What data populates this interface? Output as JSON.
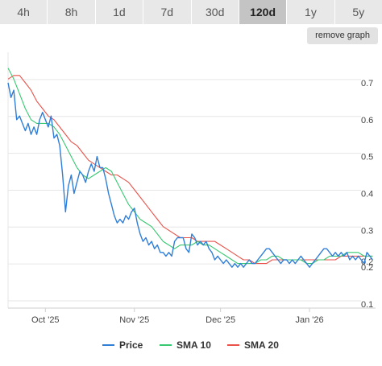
{
  "tabs": [
    {
      "label": "4h",
      "active": false
    },
    {
      "label": "8h",
      "active": false
    },
    {
      "label": "1d",
      "active": false
    },
    {
      "label": "7d",
      "active": false
    },
    {
      "label": "30d",
      "active": false
    },
    {
      "label": "120d",
      "active": true
    },
    {
      "label": "1y",
      "active": false
    },
    {
      "label": "5y",
      "active": false
    }
  ],
  "remove_graph_label": "remove graph",
  "chart_data": {
    "type": "line",
    "title": "",
    "xlabel": "",
    "ylabel": "",
    "ylim": [
      0.1,
      0.75
    ],
    "y_ticks": [
      0.7,
      0.6,
      0.5,
      0.4,
      0.3,
      0.2,
      0.1
    ],
    "x_range": [
      "2025-09-18",
      "2026-01-24"
    ],
    "x_ticks": [
      {
        "label": "Oct '25",
        "date": "2025-10-01"
      },
      {
        "label": "Nov '25",
        "date": "2025-11-01"
      },
      {
        "label": "Dec '25",
        "date": "2025-12-01"
      },
      {
        "label": "Jan '26",
        "date": "2026-01-01"
      }
    ],
    "grid": "horizontal",
    "legend": "bottom",
    "current_value_label": "0.2",
    "series": [
      {
        "name": "Price",
        "color": "#2f7ed8",
        "points": [
          [
            "2025-09-18",
            0.7
          ],
          [
            "2025-09-19",
            0.66
          ],
          [
            "2025-09-20",
            0.68
          ],
          [
            "2025-09-21",
            0.6
          ],
          [
            "2025-09-22",
            0.61
          ],
          [
            "2025-09-23",
            0.59
          ],
          [
            "2025-09-24",
            0.57
          ],
          [
            "2025-09-25",
            0.59
          ],
          [
            "2025-09-26",
            0.56
          ],
          [
            "2025-09-27",
            0.58
          ],
          [
            "2025-09-28",
            0.56
          ],
          [
            "2025-09-29",
            0.6
          ],
          [
            "2025-09-30",
            0.62
          ],
          [
            "2025-10-01",
            0.6
          ],
          [
            "2025-10-02",
            0.58
          ],
          [
            "2025-10-03",
            0.61
          ],
          [
            "2025-10-04",
            0.55
          ],
          [
            "2025-10-05",
            0.56
          ],
          [
            "2025-10-06",
            0.53
          ],
          [
            "2025-10-07",
            0.45
          ],
          [
            "2025-10-08",
            0.35
          ],
          [
            "2025-10-09",
            0.42
          ],
          [
            "2025-10-10",
            0.45
          ],
          [
            "2025-10-11",
            0.4
          ],
          [
            "2025-10-12",
            0.43
          ],
          [
            "2025-10-13",
            0.46
          ],
          [
            "2025-10-14",
            0.45
          ],
          [
            "2025-10-15",
            0.43
          ],
          [
            "2025-10-16",
            0.46
          ],
          [
            "2025-10-17",
            0.48
          ],
          [
            "2025-10-18",
            0.46
          ],
          [
            "2025-10-19",
            0.5
          ],
          [
            "2025-10-20",
            0.47
          ],
          [
            "2025-10-21",
            0.47
          ],
          [
            "2025-10-22",
            0.44
          ],
          [
            "2025-10-23",
            0.4
          ],
          [
            "2025-10-24",
            0.37
          ],
          [
            "2025-10-25",
            0.34
          ],
          [
            "2025-10-26",
            0.32
          ],
          [
            "2025-10-27",
            0.33
          ],
          [
            "2025-10-28",
            0.32
          ],
          [
            "2025-10-29",
            0.34
          ],
          [
            "2025-10-30",
            0.33
          ],
          [
            "2025-10-31",
            0.35
          ],
          [
            "2025-11-01",
            0.36
          ],
          [
            "2025-11-02",
            0.32
          ],
          [
            "2025-11-03",
            0.29
          ],
          [
            "2025-11-04",
            0.27
          ],
          [
            "2025-11-05",
            0.28
          ],
          [
            "2025-11-06",
            0.26
          ],
          [
            "2025-11-07",
            0.27
          ],
          [
            "2025-11-08",
            0.25
          ],
          [
            "2025-11-09",
            0.26
          ],
          [
            "2025-11-10",
            0.24
          ],
          [
            "2025-11-11",
            0.24
          ],
          [
            "2025-11-12",
            0.23
          ],
          [
            "2025-11-13",
            0.24
          ],
          [
            "2025-11-14",
            0.23
          ],
          [
            "2025-11-15",
            0.27
          ],
          [
            "2025-11-16",
            0.28
          ],
          [
            "2025-11-17",
            0.28
          ],
          [
            "2025-11-18",
            0.28
          ],
          [
            "2025-11-19",
            0.25
          ],
          [
            "2025-11-20",
            0.24
          ],
          [
            "2025-11-21",
            0.29
          ],
          [
            "2025-11-22",
            0.28
          ],
          [
            "2025-11-23",
            0.26
          ],
          [
            "2025-11-24",
            0.27
          ],
          [
            "2025-11-25",
            0.26
          ],
          [
            "2025-11-26",
            0.27
          ],
          [
            "2025-11-27",
            0.25
          ],
          [
            "2025-11-28",
            0.24
          ],
          [
            "2025-11-29",
            0.22
          ],
          [
            "2025-11-30",
            0.23
          ],
          [
            "2025-12-01",
            0.22
          ],
          [
            "2025-12-02",
            0.21
          ],
          [
            "2025-12-03",
            0.22
          ],
          [
            "2025-12-04",
            0.21
          ],
          [
            "2025-12-05",
            0.2
          ],
          [
            "2025-12-06",
            0.21
          ],
          [
            "2025-12-07",
            0.2
          ],
          [
            "2025-12-08",
            0.21
          ],
          [
            "2025-12-09",
            0.2
          ],
          [
            "2025-12-10",
            0.21
          ],
          [
            "2025-12-11",
            0.22
          ],
          [
            "2025-12-12",
            0.21
          ],
          [
            "2025-12-13",
            0.21
          ],
          [
            "2025-12-14",
            0.22
          ],
          [
            "2025-12-15",
            0.23
          ],
          [
            "2025-12-16",
            0.24
          ],
          [
            "2025-12-17",
            0.25
          ],
          [
            "2025-12-18",
            0.25
          ],
          [
            "2025-12-19",
            0.24
          ],
          [
            "2025-12-20",
            0.23
          ],
          [
            "2025-12-21",
            0.22
          ],
          [
            "2025-12-22",
            0.21
          ],
          [
            "2025-12-23",
            0.22
          ],
          [
            "2025-12-24",
            0.22
          ],
          [
            "2025-12-25",
            0.21
          ],
          [
            "2025-12-26",
            0.22
          ],
          [
            "2025-12-27",
            0.21
          ],
          [
            "2025-12-28",
            0.22
          ],
          [
            "2025-12-29",
            0.23
          ],
          [
            "2025-12-30",
            0.22
          ],
          [
            "2025-12-31",
            0.21
          ],
          [
            "2026-01-01",
            0.2
          ],
          [
            "2026-01-02",
            0.21
          ],
          [
            "2026-01-03",
            0.22
          ],
          [
            "2026-01-04",
            0.23
          ],
          [
            "2026-01-05",
            0.24
          ],
          [
            "2026-01-06",
            0.25
          ],
          [
            "2026-01-07",
            0.25
          ],
          [
            "2026-01-08",
            0.24
          ],
          [
            "2026-01-09",
            0.23
          ],
          [
            "2026-01-10",
            0.24
          ],
          [
            "2026-01-11",
            0.23
          ],
          [
            "2026-01-12",
            0.24
          ],
          [
            "2026-01-13",
            0.23
          ],
          [
            "2026-01-14",
            0.24
          ],
          [
            "2026-01-15",
            0.22
          ],
          [
            "2026-01-16",
            0.23
          ],
          [
            "2026-01-17",
            0.22
          ],
          [
            "2026-01-18",
            0.23
          ],
          [
            "2026-01-19",
            0.22
          ],
          [
            "2026-01-20",
            0.21
          ],
          [
            "2026-01-21",
            0.24
          ],
          [
            "2026-01-22",
            0.23
          ],
          [
            "2026-01-23",
            0.22
          ]
        ]
      },
      {
        "name": "SMA 10",
        "color": "#37c871",
        "points": [
          [
            "2025-09-18",
            0.74
          ],
          [
            "2025-09-20",
            0.71
          ],
          [
            "2025-09-22",
            0.67
          ],
          [
            "2025-09-24",
            0.63
          ],
          [
            "2025-09-26",
            0.6
          ],
          [
            "2025-09-28",
            0.59
          ],
          [
            "2025-09-30",
            0.59
          ],
          [
            "2025-10-02",
            0.59
          ],
          [
            "2025-10-04",
            0.58
          ],
          [
            "2025-10-06",
            0.56
          ],
          [
            "2025-10-08",
            0.53
          ],
          [
            "2025-10-10",
            0.5
          ],
          [
            "2025-10-12",
            0.47
          ],
          [
            "2025-10-14",
            0.45
          ],
          [
            "2025-10-16",
            0.44
          ],
          [
            "2025-10-18",
            0.45
          ],
          [
            "2025-10-20",
            0.46
          ],
          [
            "2025-10-22",
            0.47
          ],
          [
            "2025-10-24",
            0.46
          ],
          [
            "2025-10-26",
            0.43
          ],
          [
            "2025-10-28",
            0.4
          ],
          [
            "2025-10-30",
            0.37
          ],
          [
            "2025-11-01",
            0.35
          ],
          [
            "2025-11-03",
            0.33
          ],
          [
            "2025-11-05",
            0.32
          ],
          [
            "2025-11-07",
            0.31
          ],
          [
            "2025-11-09",
            0.29
          ],
          [
            "2025-11-11",
            0.27
          ],
          [
            "2025-11-13",
            0.26
          ],
          [
            "2025-11-15",
            0.25
          ],
          [
            "2025-11-17",
            0.26
          ],
          [
            "2025-11-19",
            0.26
          ],
          [
            "2025-11-21",
            0.26
          ],
          [
            "2025-11-23",
            0.27
          ],
          [
            "2025-11-25",
            0.26
          ],
          [
            "2025-11-27",
            0.26
          ],
          [
            "2025-11-29",
            0.25
          ],
          [
            "2025-12-01",
            0.24
          ],
          [
            "2025-12-03",
            0.23
          ],
          [
            "2025-12-05",
            0.22
          ],
          [
            "2025-12-07",
            0.21
          ],
          [
            "2025-12-09",
            0.21
          ],
          [
            "2025-12-11",
            0.21
          ],
          [
            "2025-12-13",
            0.21
          ],
          [
            "2025-12-15",
            0.22
          ],
          [
            "2025-12-17",
            0.22
          ],
          [
            "2025-12-19",
            0.23
          ],
          [
            "2025-12-21",
            0.23
          ],
          [
            "2025-12-23",
            0.22
          ],
          [
            "2025-12-25",
            0.22
          ],
          [
            "2025-12-27",
            0.22
          ],
          [
            "2025-12-29",
            0.22
          ],
          [
            "2025-12-31",
            0.21
          ],
          [
            "2026-01-02",
            0.21
          ],
          [
            "2026-01-04",
            0.22
          ],
          [
            "2026-01-06",
            0.22
          ],
          [
            "2026-01-08",
            0.23
          ],
          [
            "2026-01-10",
            0.23
          ],
          [
            "2026-01-12",
            0.23
          ],
          [
            "2026-01-14",
            0.24
          ],
          [
            "2026-01-16",
            0.24
          ],
          [
            "2026-01-18",
            0.24
          ],
          [
            "2026-01-20",
            0.23
          ],
          [
            "2026-01-23",
            0.23
          ]
        ]
      },
      {
        "name": "SMA 20",
        "color": "#e8524b",
        "points": [
          [
            "2025-09-18",
            0.71
          ],
          [
            "2025-09-20",
            0.72
          ],
          [
            "2025-09-22",
            0.72
          ],
          [
            "2025-09-24",
            0.7
          ],
          [
            "2025-09-26",
            0.68
          ],
          [
            "2025-09-28",
            0.65
          ],
          [
            "2025-09-30",
            0.63
          ],
          [
            "2025-10-02",
            0.61
          ],
          [
            "2025-10-04",
            0.6
          ],
          [
            "2025-10-06",
            0.58
          ],
          [
            "2025-10-08",
            0.56
          ],
          [
            "2025-10-10",
            0.54
          ],
          [
            "2025-10-12",
            0.53
          ],
          [
            "2025-10-14",
            0.51
          ],
          [
            "2025-10-16",
            0.49
          ],
          [
            "2025-10-18",
            0.48
          ],
          [
            "2025-10-20",
            0.47
          ],
          [
            "2025-10-22",
            0.46
          ],
          [
            "2025-10-24",
            0.45
          ],
          [
            "2025-10-26",
            0.45
          ],
          [
            "2025-10-28",
            0.44
          ],
          [
            "2025-10-30",
            0.43
          ],
          [
            "2025-11-01",
            0.41
          ],
          [
            "2025-11-03",
            0.39
          ],
          [
            "2025-11-05",
            0.37
          ],
          [
            "2025-11-07",
            0.35
          ],
          [
            "2025-11-09",
            0.33
          ],
          [
            "2025-11-11",
            0.31
          ],
          [
            "2025-11-13",
            0.3
          ],
          [
            "2025-11-15",
            0.29
          ],
          [
            "2025-11-17",
            0.28
          ],
          [
            "2025-11-19",
            0.28
          ],
          [
            "2025-11-21",
            0.28
          ],
          [
            "2025-11-23",
            0.27
          ],
          [
            "2025-11-25",
            0.27
          ],
          [
            "2025-11-27",
            0.27
          ],
          [
            "2025-11-29",
            0.27
          ],
          [
            "2025-12-01",
            0.26
          ],
          [
            "2025-12-03",
            0.25
          ],
          [
            "2025-12-05",
            0.24
          ],
          [
            "2025-12-07",
            0.23
          ],
          [
            "2025-12-09",
            0.22
          ],
          [
            "2025-12-11",
            0.22
          ],
          [
            "2025-12-13",
            0.21
          ],
          [
            "2025-12-15",
            0.21
          ],
          [
            "2025-12-17",
            0.21
          ],
          [
            "2025-12-19",
            0.22
          ],
          [
            "2025-12-21",
            0.22
          ],
          [
            "2025-12-23",
            0.22
          ],
          [
            "2025-12-25",
            0.22
          ],
          [
            "2025-12-27",
            0.22
          ],
          [
            "2025-12-29",
            0.22
          ],
          [
            "2025-12-31",
            0.22
          ],
          [
            "2026-01-02",
            0.22
          ],
          [
            "2026-01-04",
            0.22
          ],
          [
            "2026-01-06",
            0.22
          ],
          [
            "2026-01-08",
            0.22
          ],
          [
            "2026-01-10",
            0.22
          ],
          [
            "2026-01-12",
            0.23
          ],
          [
            "2026-01-14",
            0.23
          ],
          [
            "2026-01-16",
            0.23
          ],
          [
            "2026-01-18",
            0.23
          ],
          [
            "2026-01-20",
            0.23
          ],
          [
            "2026-01-23",
            0.23
          ]
        ]
      }
    ]
  }
}
